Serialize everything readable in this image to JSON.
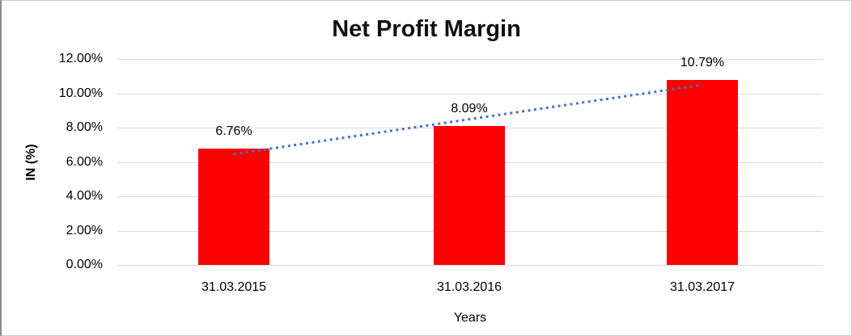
{
  "chart_data": {
    "type": "bar",
    "title": "Net Profit Margin",
    "xlabel": "Years",
    "ylabel": "IN (%)",
    "categories": [
      "31.03.2015",
      "31.03.2016",
      "31.03.2017"
    ],
    "values": [
      6.76,
      8.09,
      10.79
    ],
    "data_labels": [
      "6.76%",
      "8.09%",
      "10.79%"
    ],
    "ylim": [
      0,
      12
    ],
    "yticks": [
      {
        "value": 12,
        "label": "12.00%"
      },
      {
        "value": 10,
        "label": "10.00%"
      },
      {
        "value": 8,
        "label": "8.00%"
      },
      {
        "value": 6,
        "label": "6.00%"
      },
      {
        "value": 4,
        "label": "4.00%"
      },
      {
        "value": 2,
        "label": "2.00%"
      },
      {
        "value": 0,
        "label": "0.00%"
      }
    ],
    "grid": true,
    "legend": "none",
    "colors": {
      "bar": "#FF0000",
      "trendline": "#4472C4",
      "gridline": "#D9D9D9",
      "text": "#000000",
      "title": "#111111"
    },
    "trendline": {
      "kind": "linear",
      "style": "dotted"
    }
  }
}
